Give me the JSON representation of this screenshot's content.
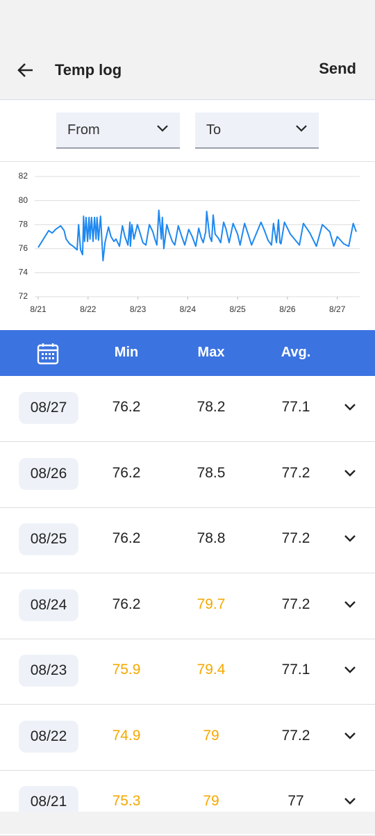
{
  "header": {
    "title": "Temp log",
    "action": "Send"
  },
  "filters": {
    "from": "From",
    "to": "To"
  },
  "chart_data": {
    "type": "line",
    "color": "#1e88f0",
    "grid": true,
    "x": [
      0,
      0.21,
      0.28,
      0.35,
      0.45,
      0.52,
      0.56,
      0.63,
      0.7,
      0.78,
      0.81,
      0.85,
      0.89,
      0.91,
      0.93,
      0.96,
      0.99,
      1.02,
      1.04,
      1.07,
      1.1,
      1.13,
      1.16,
      1.18,
      1.21,
      1.25,
      1.28,
      1.3,
      1.34,
      1.41,
      1.46,
      1.52,
      1.56,
      1.63,
      1.69,
      1.74,
      1.8,
      1.84,
      1.85,
      1.88,
      1.92,
      1.99,
      2.05,
      2.1,
      2.16,
      2.23,
      2.3,
      2.34,
      2.38,
      2.42,
      2.47,
      2.49,
      2.52,
      2.58,
      2.63,
      2.69,
      2.74,
      2.81,
      2.88,
      2.94,
      3.02,
      3.09,
      3.16,
      3.22,
      3.27,
      3.31,
      3.36,
      3.38,
      3.44,
      3.48,
      3.51,
      3.55,
      3.61,
      3.66,
      3.72,
      3.77,
      3.83,
      3.91,
      4.0,
      4.05,
      4.14,
      4.22,
      4.28,
      4.47,
      4.54,
      4.61,
      4.68,
      4.72,
      4.78,
      4.82,
      4.85,
      4.87,
      4.94,
      5.06,
      5.24,
      5.32,
      5.45,
      5.58,
      5.7,
      5.85,
      5.93,
      6.0,
      6.13,
      6.23,
      6.32,
      6.38
    ],
    "values": [
      76.1,
      77.5,
      77.3,
      77.6,
      77.9,
      77.5,
      76.8,
      76.4,
      76.2,
      75.9,
      78.0,
      75.9,
      75.5,
      78.7,
      76.6,
      78.6,
      76.6,
      78.6,
      76.8,
      78.6,
      76.6,
      78.6,
      76.8,
      78.6,
      76.7,
      78.7,
      76.5,
      75.0,
      76.5,
      77.8,
      77.0,
      76.6,
      76.8,
      76.2,
      77.9,
      77.0,
      76.3,
      78.2,
      76.2,
      78.0,
      76.8,
      78.0,
      77.2,
      76.5,
      76.3,
      78.0,
      77.4,
      76.8,
      76.3,
      79.2,
      76.8,
      78.6,
      76.0,
      78.0,
      77.3,
      76.6,
      76.3,
      77.9,
      77.0,
      76.3,
      77.6,
      77.0,
      76.2,
      77.7,
      76.9,
      76.5,
      77.4,
      79.1,
      77.0,
      76.6,
      78.8,
      77.2,
      76.9,
      76.5,
      78.2,
      77.6,
      76.5,
      78.1,
      77.2,
      76.3,
      78.1,
      77.1,
      76.3,
      78.2,
      77.5,
      76.7,
      76.3,
      78.1,
      76.5,
      78.4,
      76.5,
      76.4,
      78.2,
      77.2,
      76.3,
      78.1,
      77.3,
      76.2,
      78.0,
      77.4,
      76.2,
      77.0,
      76.4,
      76.2,
      78.1,
      77.4
    ],
    "xlim": [
      -0.07,
      6.45
    ],
    "xticks": [
      {
        "value": 0,
        "label": "8/21"
      },
      {
        "value": 1,
        "label": "8/22"
      },
      {
        "value": 2,
        "label": "8/23"
      },
      {
        "value": 3,
        "label": "8/24"
      },
      {
        "value": 4,
        "label": "8/25"
      },
      {
        "value": 5,
        "label": "8/26"
      },
      {
        "value": 6,
        "label": "8/27"
      }
    ],
    "ylim": [
      72,
      82
    ],
    "yticks": [
      72,
      74,
      76,
      78,
      80,
      82
    ]
  },
  "table": {
    "header": {
      "min": "Min",
      "max": "Max",
      "avg": "Avg."
    },
    "highlight_color": "#f5a800",
    "rows": [
      {
        "date": "08/27",
        "min": 76.2,
        "max": 78.2,
        "avg": 77.1,
        "highlight": []
      },
      {
        "date": "08/26",
        "min": 76.2,
        "max": 78.5,
        "avg": 77.2,
        "highlight": []
      },
      {
        "date": "08/25",
        "min": 76.2,
        "max": 78.8,
        "avg": 77.2,
        "highlight": []
      },
      {
        "date": "08/24",
        "min": 76.2,
        "max": 79.7,
        "avg": 77.2,
        "highlight": [
          "max"
        ]
      },
      {
        "date": "08/23",
        "min": 75.9,
        "max": 79.4,
        "avg": 77.1,
        "highlight": [
          "min",
          "max"
        ]
      },
      {
        "date": "08/22",
        "min": 74.9,
        "max": 79,
        "avg": 77.2,
        "highlight": [
          "min",
          "max"
        ]
      },
      {
        "date": "08/21",
        "min": 75.3,
        "max": 79,
        "avg": 77,
        "highlight": [
          "min",
          "max"
        ]
      }
    ]
  }
}
